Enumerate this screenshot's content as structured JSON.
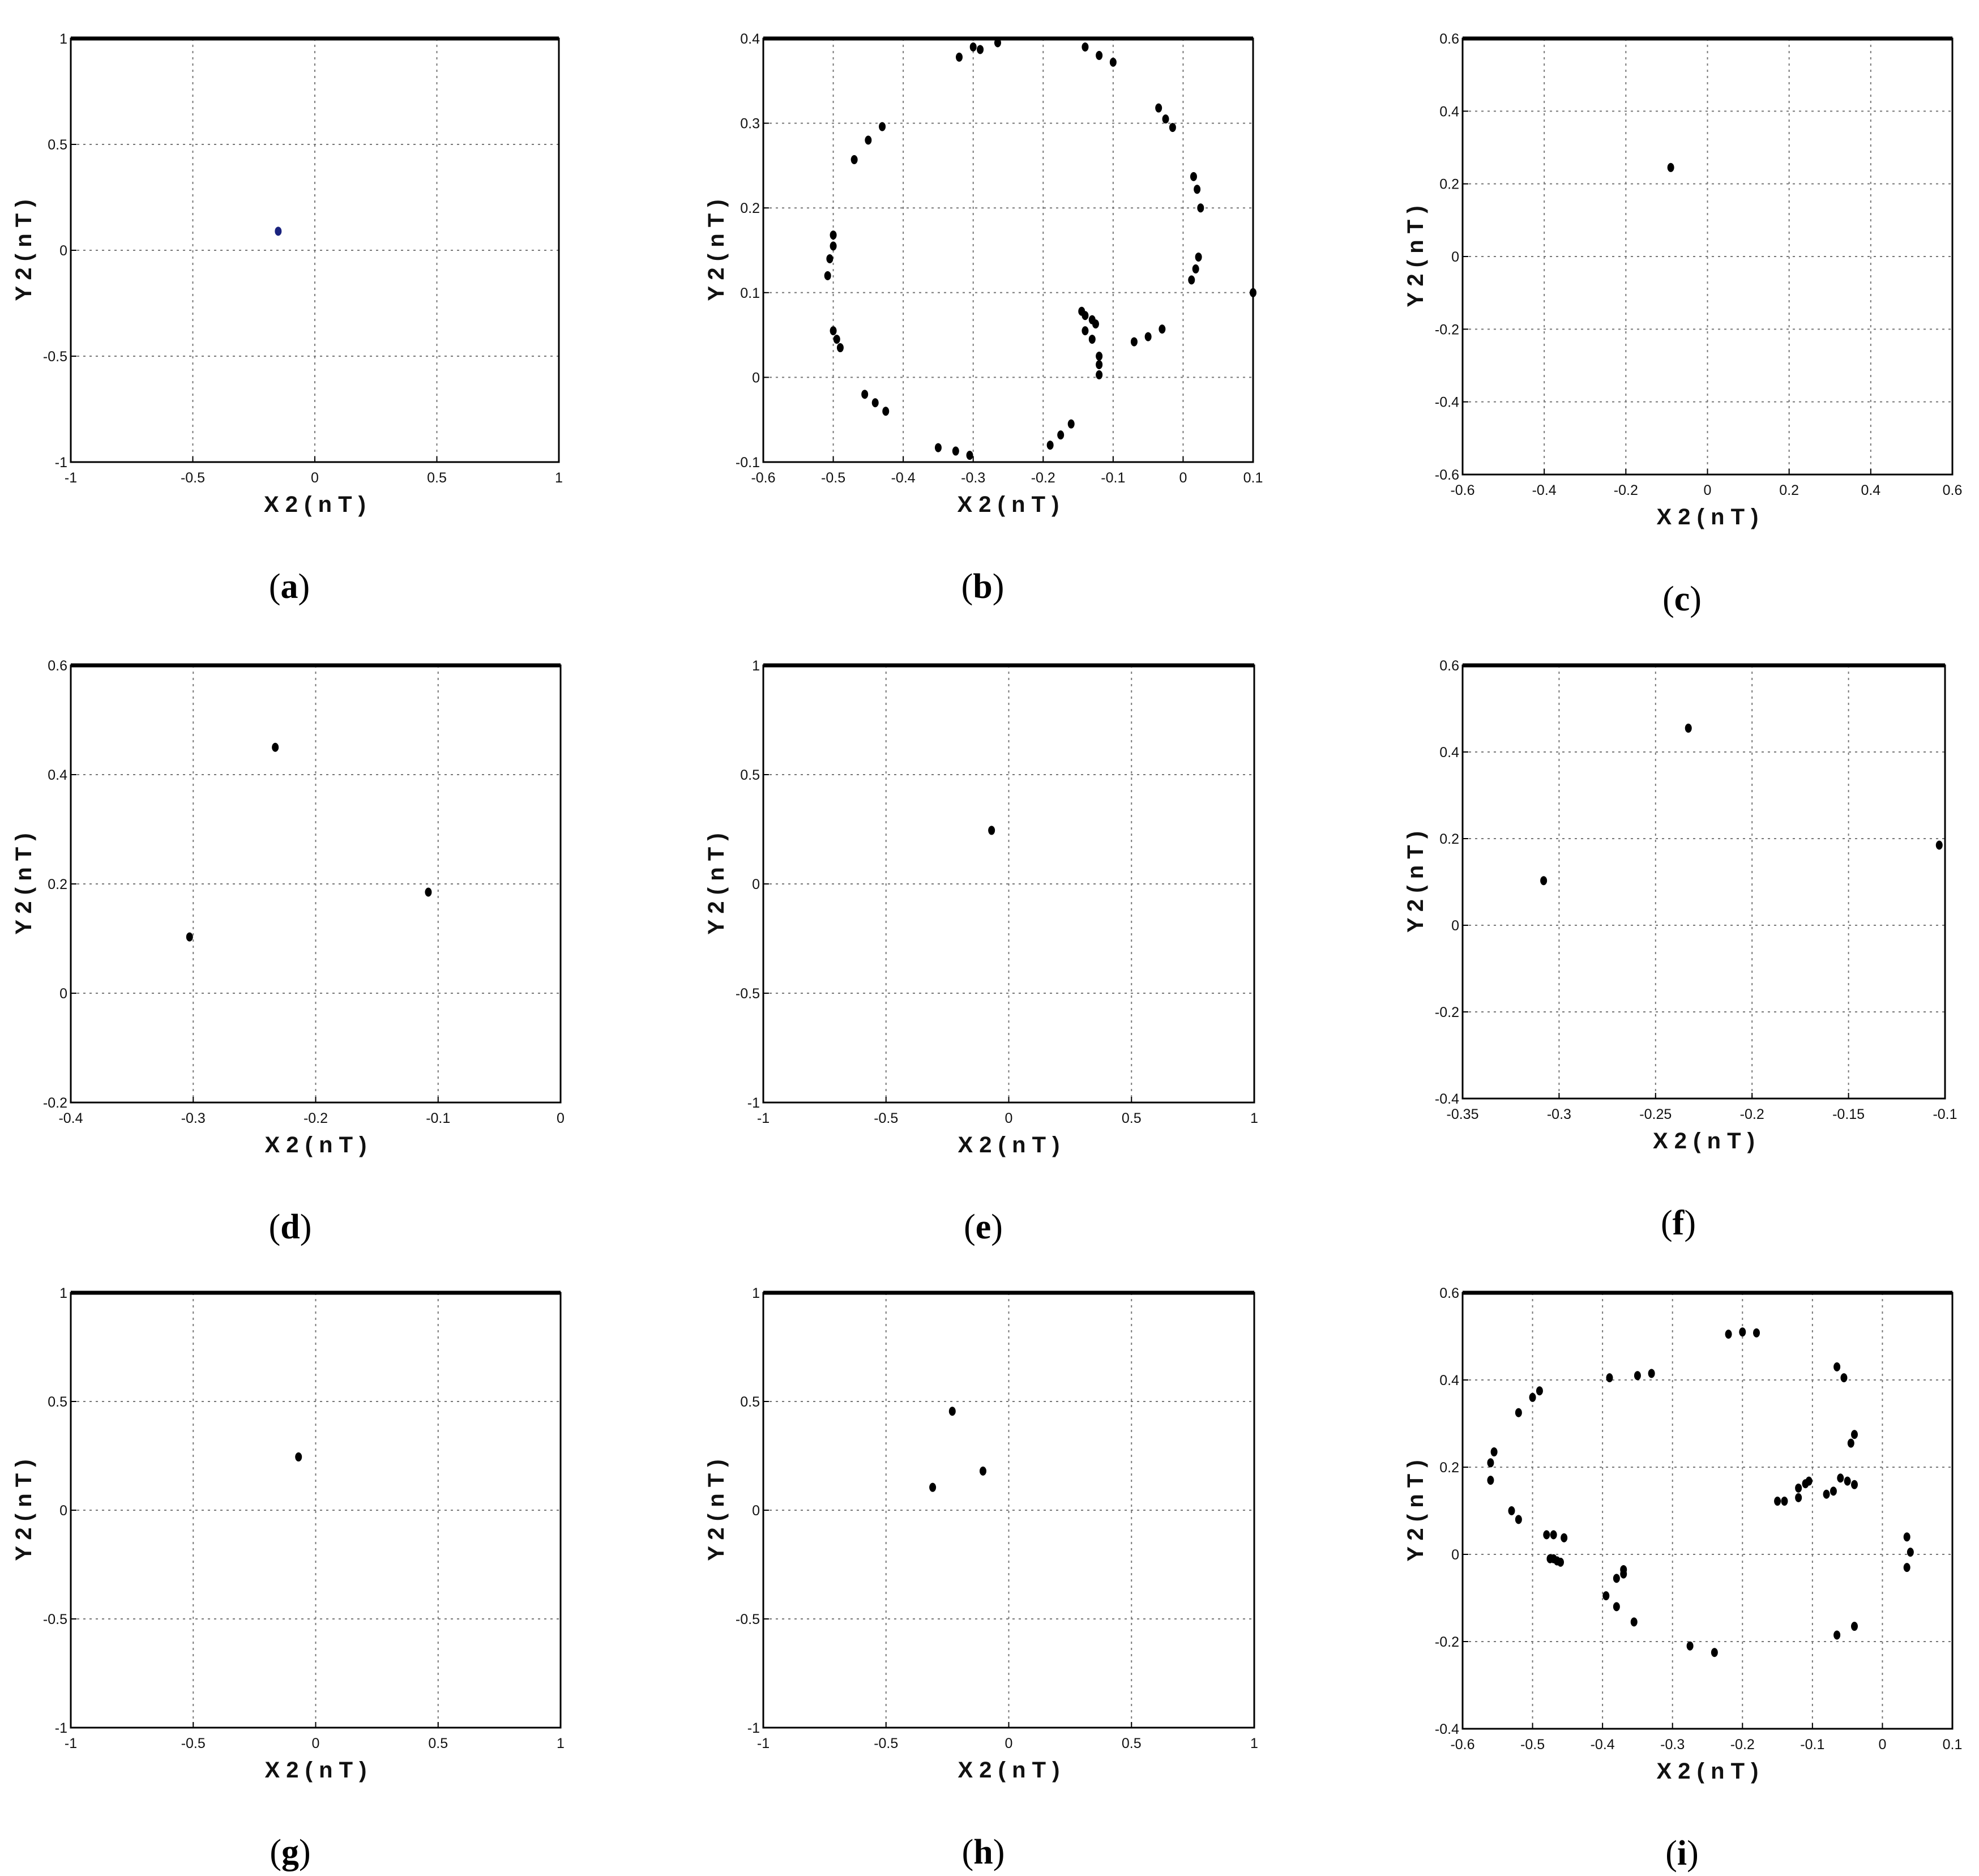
{
  "chart_data": [
    {
      "type": "scatter",
      "caption": "(a)",
      "title": "",
      "xlabel": "X 2 ( n T )",
      "ylabel": "Y 2 ( n T )",
      "xlim": [
        -1,
        1
      ],
      "ylim": [
        -1,
        1
      ],
      "xticks": [
        -1,
        -0.5,
        0,
        0.5,
        1
      ],
      "yticks": [
        -1,
        -0.5,
        0,
        0.5,
        1
      ],
      "grid": true,
      "marker_color": "#1a237e",
      "points": [
        [
          -0.15,
          0.09
        ]
      ]
    },
    {
      "type": "scatter",
      "caption": "(b)",
      "title": "",
      "xlabel": "X 2 ( n T )",
      "ylabel": "Y 2 ( n T )",
      "xlim": [
        -0.6,
        0.1
      ],
      "ylim": [
        -0.1,
        0.4
      ],
      "xticks": [
        -0.6,
        -0.5,
        -0.4,
        -0.3,
        -0.2,
        -0.1,
        0,
        0.1
      ],
      "yticks": [
        -0.1,
        0,
        0.1,
        0.2,
        0.3,
        0.4
      ],
      "grid": true,
      "marker_color": "#000000",
      "points": [
        [
          -0.32,
          0.378
        ],
        [
          -0.3,
          0.39
        ],
        [
          -0.29,
          0.387
        ],
        [
          -0.265,
          0.395
        ],
        [
          -0.14,
          0.39
        ],
        [
          -0.12,
          0.38
        ],
        [
          -0.1,
          0.372
        ],
        [
          -0.43,
          0.296
        ],
        [
          -0.45,
          0.28
        ],
        [
          -0.47,
          0.257
        ],
        [
          -0.035,
          0.318
        ],
        [
          -0.025,
          0.305
        ],
        [
          -0.015,
          0.295
        ],
        [
          0.015,
          0.237
        ],
        [
          0.02,
          0.222
        ],
        [
          0.025,
          0.2
        ],
        [
          -0.5,
          0.168
        ],
        [
          -0.5,
          0.155
        ],
        [
          -0.505,
          0.14
        ],
        [
          -0.508,
          0.12
        ],
        [
          0.022,
          0.142
        ],
        [
          0.018,
          0.128
        ],
        [
          0.012,
          0.115
        ],
        [
          0.1,
          0.1
        ],
        [
          -0.5,
          0.055
        ],
        [
          -0.495,
          0.045
        ],
        [
          -0.49,
          0.035
        ],
        [
          -0.145,
          0.078
        ],
        [
          -0.14,
          0.073
        ],
        [
          -0.13,
          0.068
        ],
        [
          -0.125,
          0.063
        ],
        [
          -0.14,
          0.055
        ],
        [
          -0.13,
          0.045
        ],
        [
          -0.12,
          0.025
        ],
        [
          -0.12,
          0.015
        ],
        [
          -0.12,
          0.003
        ],
        [
          -0.03,
          0.057
        ],
        [
          -0.05,
          0.048
        ],
        [
          -0.07,
          0.042
        ],
        [
          -0.455,
          -0.02
        ],
        [
          -0.44,
          -0.03
        ],
        [
          -0.425,
          -0.04
        ],
        [
          -0.16,
          -0.055
        ],
        [
          -0.175,
          -0.068
        ],
        [
          -0.19,
          -0.08
        ],
        [
          -0.35,
          -0.083
        ],
        [
          -0.325,
          -0.087
        ],
        [
          -0.305,
          -0.092
        ]
      ]
    },
    {
      "type": "scatter",
      "caption": "(c)",
      "title": "",
      "xlabel": "X 2 ( n T )",
      "ylabel": "Y 2 ( n T )",
      "xlim": [
        -0.6,
        0.6
      ],
      "ylim": [
        -0.6,
        0.6
      ],
      "xticks": [
        -0.6,
        -0.4,
        -0.2,
        0,
        0.2,
        0.4,
        0.6
      ],
      "yticks": [
        -0.6,
        -0.4,
        -0.2,
        0,
        0.2,
        0.4,
        0.6
      ],
      "grid": true,
      "marker_color": "#000000",
      "points": [
        [
          -0.09,
          0.245
        ]
      ]
    },
    {
      "type": "scatter",
      "caption": "(d)",
      "title": "",
      "xlabel": "X 2 ( n T )",
      "ylabel": "Y 2 ( n T )",
      "xlim": [
        -0.4,
        0
      ],
      "ylim": [
        -0.2,
        0.6
      ],
      "xticks": [
        -0.4,
        -0.3,
        -0.2,
        -0.1,
        0
      ],
      "yticks": [
        -0.2,
        0,
        0.2,
        0.4,
        0.6
      ],
      "grid": true,
      "marker_color": "#000000",
      "points": [
        [
          -0.233,
          0.45
        ],
        [
          -0.108,
          0.185
        ],
        [
          -0.303,
          0.103
        ]
      ]
    },
    {
      "type": "scatter",
      "caption": "(e)",
      "title": "",
      "xlabel": "X 2 ( n T )",
      "ylabel": "Y 2 ( n T )",
      "xlim": [
        -1,
        1
      ],
      "ylim": [
        -1,
        1
      ],
      "xticks": [
        -1,
        -0.5,
        0,
        0.5,
        1
      ],
      "yticks": [
        -1,
        -0.5,
        0,
        0.5,
        1
      ],
      "grid": true,
      "marker_color": "#000000",
      "points": [
        [
          -0.07,
          0.245
        ]
      ]
    },
    {
      "type": "scatter",
      "caption": "(f)",
      "title": "",
      "xlabel": "X 2 ( n T )",
      "ylabel": "Y 2 ( n T )",
      "xlim": [
        -0.35,
        -0.1
      ],
      "ylim": [
        -0.4,
        0.6
      ],
      "xticks": [
        -0.35,
        -0.3,
        -0.25,
        -0.2,
        -0.15,
        -0.1
      ],
      "yticks": [
        -0.4,
        -0.2,
        0,
        0.2,
        0.4,
        0.6
      ],
      "grid": true,
      "marker_color": "#000000",
      "points": [
        [
          -0.233,
          0.455
        ],
        [
          -0.103,
          0.185
        ],
        [
          -0.308,
          0.103
        ]
      ]
    },
    {
      "type": "scatter",
      "caption": "(g)",
      "title": "",
      "xlabel": "X 2 ( n T )",
      "ylabel": "Y 2 ( n T )",
      "xlim": [
        -1,
        1
      ],
      "ylim": [
        -1,
        1
      ],
      "xticks": [
        -1,
        -0.5,
        0,
        0.5,
        1
      ],
      "yticks": [
        -1,
        -0.5,
        0,
        0.5,
        1
      ],
      "grid": true,
      "marker_color": "#000000",
      "points": [
        [
          -0.07,
          0.245
        ]
      ]
    },
    {
      "type": "scatter",
      "caption": "(h)",
      "title": "",
      "xlabel": "X 2 ( n T )",
      "ylabel": "Y 2 ( n T )",
      "xlim": [
        -1,
        1
      ],
      "ylim": [
        -1,
        1
      ],
      "xticks": [
        -1,
        -0.5,
        0,
        0.5,
        1
      ],
      "yticks": [
        -1,
        -0.5,
        0,
        0.5,
        1
      ],
      "grid": true,
      "marker_color": "#000000",
      "points": [
        [
          -0.23,
          0.455
        ],
        [
          -0.105,
          0.18
        ],
        [
          -0.31,
          0.105
        ]
      ]
    },
    {
      "type": "scatter",
      "caption": "(i)",
      "title": "",
      "xlabel": "X 2 ( n T )",
      "ylabel": "Y 2 ( n T )",
      "xlim": [
        -0.6,
        0.1
      ],
      "ylim": [
        -0.4,
        0.6
      ],
      "xticks": [
        -0.6,
        -0.5,
        -0.4,
        -0.3,
        -0.2,
        -0.1,
        0,
        0.1
      ],
      "yticks": [
        -0.4,
        -0.2,
        0,
        0.2,
        0.4,
        0.6
      ],
      "grid": true,
      "marker_color": "#000000",
      "points": [
        [
          -0.22,
          0.505
        ],
        [
          -0.2,
          0.51
        ],
        [
          -0.18,
          0.508
        ],
        [
          -0.065,
          0.43
        ],
        [
          -0.055,
          0.405
        ],
        [
          -0.49,
          0.375
        ],
        [
          -0.5,
          0.36
        ],
        [
          -0.52,
          0.325
        ],
        [
          -0.39,
          0.405
        ],
        [
          -0.35,
          0.41
        ],
        [
          -0.33,
          0.415
        ],
        [
          -0.04,
          0.275
        ],
        [
          -0.045,
          0.255
        ],
        [
          -0.555,
          0.235
        ],
        [
          -0.56,
          0.21
        ],
        [
          -0.56,
          0.17
        ],
        [
          -0.06,
          0.175
        ],
        [
          -0.05,
          0.168
        ],
        [
          -0.04,
          0.16
        ],
        [
          -0.105,
          0.168
        ],
        [
          -0.11,
          0.162
        ],
        [
          -0.12,
          0.152
        ],
        [
          -0.12,
          0.13
        ],
        [
          -0.07,
          0.145
        ],
        [
          -0.08,
          0.138
        ],
        [
          -0.15,
          0.122
        ],
        [
          -0.14,
          0.122
        ],
        [
          -0.53,
          0.1
        ],
        [
          -0.52,
          0.08
        ],
        [
          -0.48,
          0.045
        ],
        [
          -0.47,
          0.045
        ],
        [
          -0.455,
          0.038
        ],
        [
          -0.475,
          -0.01
        ],
        [
          -0.47,
          -0.01
        ],
        [
          -0.465,
          -0.015
        ],
        [
          -0.46,
          -0.018
        ],
        [
          0.035,
          0.04
        ],
        [
          0.04,
          0.005
        ],
        [
          0.035,
          -0.03
        ],
        [
          -0.37,
          -0.035
        ],
        [
          -0.37,
          -0.045
        ],
        [
          -0.38,
          -0.055
        ],
        [
          -0.395,
          -0.095
        ],
        [
          -0.38,
          -0.12
        ],
        [
          -0.355,
          -0.155
        ],
        [
          -0.275,
          -0.21
        ],
        [
          -0.24,
          -0.225
        ],
        [
          -0.065,
          -0.185
        ],
        [
          -0.04,
          -0.165
        ]
      ]
    }
  ]
}
